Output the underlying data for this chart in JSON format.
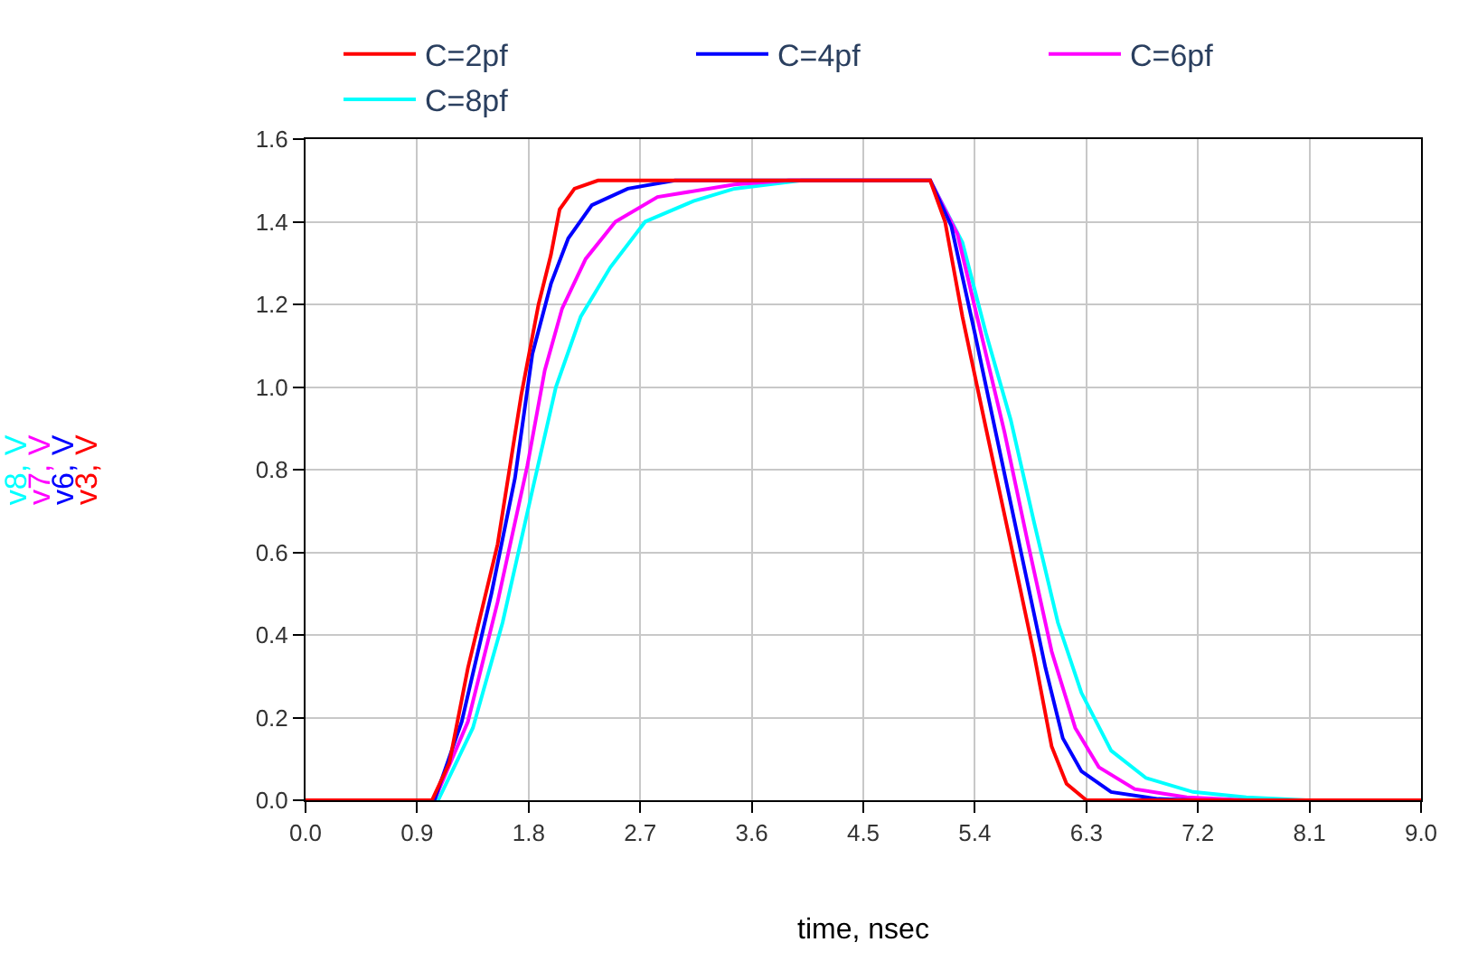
{
  "chart_data": {
    "type": "line",
    "xlabel": "time, nsec",
    "ylabel": [
      "v8, V",
      "v7, V",
      "v6, V",
      "v3, V"
    ],
    "xlim": [
      0,
      9
    ],
    "ylim": [
      0,
      1.6
    ],
    "xticks": [
      {
        "value": 0,
        "label": "0.0"
      },
      0.9,
      1.8,
      2.7,
      3.6,
      4.5,
      5.4,
      6.3,
      7.2,
      8.1,
      {
        "value": 9,
        "label": "9.0"
      }
    ],
    "yticks": [
      {
        "value": 0,
        "label": "0.0"
      },
      0.2,
      0.4,
      0.6,
      0.8,
      {
        "value": 1,
        "label": "1.0"
      },
      1.2,
      1.4,
      1.6
    ],
    "grid": true,
    "legend": "top",
    "marker": "none",
    "line_style": "solid",
    "series": [
      {
        "name": "C=2pf",
        "color": "#ff0000",
        "x": [
          0,
          1.02,
          1.16,
          1.31,
          1.55,
          1.74,
          1.88,
          1.98,
          2.05,
          2.17,
          2.36,
          5.04,
          5.16,
          5.3,
          5.49,
          5.69,
          5.88,
          6.02,
          6.14,
          6.3,
          9
        ],
        "values": [
          0,
          0,
          0.09,
          0.32,
          0.62,
          0.98,
          1.2,
          1.32,
          1.43,
          1.48,
          1.5,
          1.5,
          1.4,
          1.17,
          0.9,
          0.62,
          0.35,
          0.13,
          0.04,
          0,
          0
        ]
      },
      {
        "name": "C=4pf",
        "color": "#0000ff",
        "x": [
          0,
          1.04,
          1.26,
          1.5,
          1.69,
          1.83,
          1.98,
          2.12,
          2.31,
          2.6,
          2.98,
          5.04,
          5.21,
          5.4,
          5.59,
          5.78,
          5.97,
          6.11,
          6.26,
          6.5,
          6.88,
          7.16,
          9
        ],
        "values": [
          0,
          0,
          0.19,
          0.5,
          0.78,
          1.08,
          1.25,
          1.36,
          1.44,
          1.48,
          1.5,
          1.5,
          1.39,
          1.13,
          0.86,
          0.59,
          0.32,
          0.15,
          0.07,
          0.02,
          0.003,
          0,
          0
        ]
      },
      {
        "name": "C=6pf",
        "color": "#ff00ff",
        "x": [
          0,
          1.04,
          1.31,
          1.55,
          1.79,
          1.93,
          2.07,
          2.26,
          2.5,
          2.84,
          3.46,
          3.9,
          5.04,
          5.26,
          5.45,
          5.64,
          5.83,
          6.02,
          6.21,
          6.4,
          6.69,
          7.11,
          7.59,
          9
        ],
        "values": [
          0,
          0,
          0.19,
          0.48,
          0.81,
          1.04,
          1.19,
          1.31,
          1.4,
          1.46,
          1.49,
          1.5,
          1.5,
          1.37,
          1.13,
          0.89,
          0.62,
          0.36,
          0.175,
          0.08,
          0.027,
          0.007,
          0,
          0
        ]
      },
      {
        "name": "C=8pf",
        "color": "#00ffff",
        "x": [
          0,
          1.07,
          1.35,
          1.59,
          1.83,
          2.02,
          2.22,
          2.46,
          2.74,
          3.13,
          3.46,
          4.0,
          5.04,
          5.3,
          5.49,
          5.69,
          5.88,
          6.07,
          6.26,
          6.5,
          6.78,
          7.16,
          7.59,
          8.07,
          9
        ],
        "values": [
          0,
          0,
          0.175,
          0.43,
          0.75,
          1.0,
          1.17,
          1.29,
          1.4,
          1.45,
          1.48,
          1.5,
          1.5,
          1.35,
          1.13,
          0.92,
          0.67,
          0.43,
          0.26,
          0.12,
          0.054,
          0.02,
          0.007,
          0,
          0
        ]
      }
    ]
  }
}
